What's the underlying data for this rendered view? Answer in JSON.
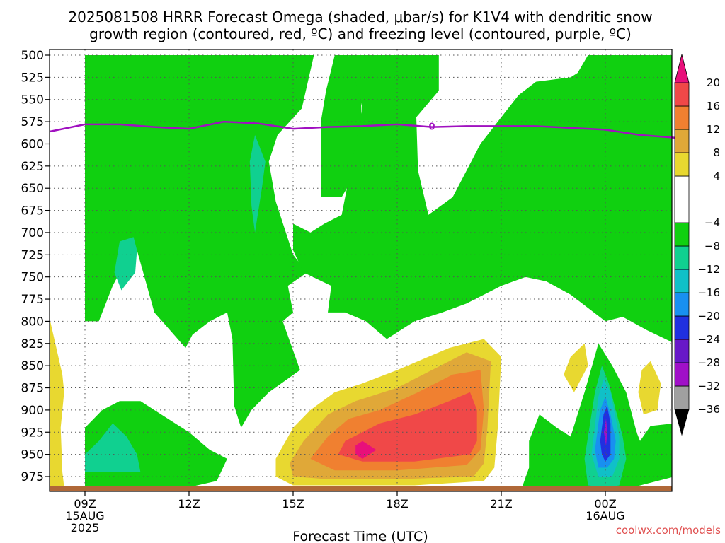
{
  "chart_data": {
    "type": "heatmap",
    "title_line1": "2025081508 HRRR Forecast Omega (shaded, μbar/s) for K1V4 with dendritic snow",
    "title_line2": "growth region (contoured, red, ºC) and freezing level (contoured, purple, ºC)",
    "xlabel": "Forecast Time (UTC)",
    "credit": "coolwx.com/models",
    "y_ticks": [
      "500",
      "525",
      "550",
      "575",
      "600",
      "625",
      "650",
      "675",
      "700",
      "725",
      "750",
      "775",
      "800",
      "825",
      "850",
      "875",
      "900",
      "925",
      "950",
      "975"
    ],
    "x_ticks": [
      {
        "h": 9,
        "lines": [
          "09Z",
          "15AUG",
          "2025"
        ]
      },
      {
        "h": 12,
        "lines": [
          "12Z"
        ]
      },
      {
        "h": 15,
        "lines": [
          "15Z"
        ]
      },
      {
        "h": 18,
        "lines": [
          "18Z"
        ]
      },
      {
        "h": 21,
        "lines": [
          "21Z"
        ]
      },
      {
        "h": 24,
        "lines": [
          "00Z",
          "16AUG"
        ]
      }
    ],
    "colorbar": {
      "levels": [
        -36,
        -32,
        -28,
        -24,
        -20,
        -16,
        -12,
        -8,
        -4,
        4,
        8,
        12,
        16,
        20
      ],
      "colors": {
        "lt_m36": "#000000",
        "m36_m32": "#a0a0a0",
        "m32_m28": "#a010c8",
        "m28_m24": "#6818c8",
        "m24_m20": "#2030e0",
        "m20_m16": "#1890f0",
        "m16_m12": "#10c0c8",
        "m12_m8": "#10d090",
        "m8_m4": "#10d010",
        "m4_4": "#ffffff",
        "p4_8": "#e8d830",
        "p8_12": "#e0a838",
        "p12_16": "#f08030",
        "p16_20": "#f04848",
        "gt_20": "#e8107a"
      }
    },
    "freezing_level_color": "#a010c0",
    "freezing_level_label": "0",
    "freezing_level": [
      {
        "h": 8.0,
        "p": 586
      },
      {
        "h": 9.0,
        "p": 578
      },
      {
        "h": 10.0,
        "p": 578
      },
      {
        "h": 11.0,
        "p": 581
      },
      {
        "h": 12.0,
        "p": 583
      },
      {
        "h": 13.0,
        "p": 575
      },
      {
        "h": 14.0,
        "p": 577
      },
      {
        "h": 15.0,
        "p": 583
      },
      {
        "h": 16.0,
        "p": 581
      },
      {
        "h": 17.0,
        "p": 580
      },
      {
        "h": 18.0,
        "p": 578
      },
      {
        "h": 19.0,
        "p": 581
      },
      {
        "h": 20.0,
        "p": 580
      },
      {
        "h": 21.0,
        "p": 580
      },
      {
        "h": 22.0,
        "p": 580
      },
      {
        "h": 23.0,
        "p": 582
      },
      {
        "h": 24.0,
        "p": 584
      },
      {
        "h": 25.0,
        "p": 590
      },
      {
        "h": 26.0,
        "p": 593
      }
    ],
    "surface_color": "#b06838",
    "regions": [
      {
        "color": "m8_m4",
        "pts": [
          [
            9,
            500
          ],
          [
            13.5,
            500
          ],
          [
            13.5,
            530
          ],
          [
            13.2,
            580
          ],
          [
            13.05,
            625
          ],
          [
            12.95,
            655
          ],
          [
            12.9,
            640
          ],
          [
            12.7,
            580
          ],
          [
            12.5,
            530
          ],
          [
            12.55,
            500
          ],
          [
            15.6,
            500
          ],
          [
            15.25,
            560
          ],
          [
            14.55,
            590
          ],
          [
            14.3,
            620
          ],
          [
            14.5,
            665
          ],
          [
            15,
            725
          ],
          [
            15.4,
            745
          ],
          [
            14.85,
            760
          ],
          [
            15,
            790
          ],
          [
            14.7,
            800
          ],
          [
            15.2,
            855
          ],
          [
            14.3,
            880
          ],
          [
            13.8,
            900
          ],
          [
            13.5,
            920
          ],
          [
            13.3,
            895
          ],
          [
            13.25,
            820
          ],
          [
            13.1,
            790
          ],
          [
            12.6,
            800
          ],
          [
            12.1,
            815
          ],
          [
            11.9,
            830
          ],
          [
            11,
            790
          ],
          [
            10.5,
            720
          ],
          [
            10.2,
            730
          ],
          [
            9.8,
            760
          ],
          [
            9.4,
            800
          ],
          [
            9,
            800
          ]
        ]
      },
      {
        "color": "m8_m4",
        "pts": [
          [
            16.2,
            500
          ],
          [
            16.6,
            500
          ],
          [
            16.95,
            540
          ],
          [
            17.0,
            600
          ],
          [
            16.7,
            640
          ],
          [
            16.4,
            660
          ],
          [
            15.8,
            660
          ],
          [
            15.8,
            575
          ],
          [
            15.95,
            540
          ]
        ]
      },
      {
        "color": "m8_m4",
        "pts": [
          [
            16.6,
            500
          ],
          [
            19.2,
            500
          ],
          [
            19.2,
            540
          ],
          [
            18.55,
            570
          ],
          [
            18.6,
            630
          ],
          [
            18.9,
            680
          ],
          [
            19.6,
            660
          ],
          [
            20.4,
            600
          ],
          [
            21.0,
            570
          ],
          [
            21.2,
            560
          ],
          [
            21.5,
            545
          ],
          [
            22,
            530
          ],
          [
            23,
            525
          ],
          [
            23.2,
            520
          ],
          [
            23.5,
            500
          ],
          [
            26,
            500
          ],
          [
            26,
            540
          ],
          [
            26,
            595
          ],
          [
            26,
            825
          ],
          [
            25.2,
            810
          ],
          [
            24.5,
            795
          ],
          [
            24,
            800
          ],
          [
            23,
            770
          ],
          [
            22.3,
            755
          ],
          [
            21.7,
            750
          ],
          [
            21,
            760
          ],
          [
            20.5,
            770
          ],
          [
            20,
            780
          ],
          [
            19.3,
            790
          ],
          [
            18.5,
            800
          ],
          [
            17.7,
            820
          ],
          [
            17.1,
            800
          ],
          [
            16.5,
            790
          ],
          [
            16.0,
            790
          ],
          [
            16.1,
            760
          ],
          [
            15.3,
            745
          ],
          [
            15.0,
            720
          ],
          [
            15.0,
            700
          ],
          [
            15.0,
            690
          ],
          [
            15.5,
            700
          ],
          [
            15.9,
            690
          ],
          [
            16.4,
            680
          ],
          [
            17,
            560
          ]
        ]
      },
      {
        "color": "m8_m4",
        "pts": [
          [
            9,
            920
          ],
          [
            9.5,
            900
          ],
          [
            10,
            890
          ],
          [
            10.6,
            890
          ],
          [
            11.2,
            905
          ],
          [
            12,
            925
          ],
          [
            12.6,
            945
          ],
          [
            13.1,
            955
          ],
          [
            12.8,
            980
          ],
          [
            12,
            987
          ],
          [
            9,
            987
          ]
        ]
      },
      {
        "color": "m8_m4",
        "pts": [
          [
            21.6,
            987
          ],
          [
            21.8,
            965
          ],
          [
            21.8,
            935
          ],
          [
            22.1,
            905
          ],
          [
            22.6,
            920
          ],
          [
            23.0,
            930
          ],
          [
            23.4,
            880
          ],
          [
            23.8,
            825
          ],
          [
            24.2,
            850
          ],
          [
            24.6,
            880
          ],
          [
            24.9,
            925
          ],
          [
            25,
            935
          ],
          [
            25.3,
            918
          ],
          [
            26,
            915
          ],
          [
            26,
            975
          ],
          [
            24.8,
            987
          ]
        ]
      },
      {
        "color": "m12_m8",
        "pts": [
          [
            13.9,
            590
          ],
          [
            14.2,
            620
          ],
          [
            14.1,
            650
          ],
          [
            13.9,
            700
          ],
          [
            13.8,
            670
          ],
          [
            13.75,
            620
          ]
        ]
      },
      {
        "color": "m12_m8",
        "pts": [
          [
            10.0,
            710
          ],
          [
            10.4,
            705
          ],
          [
            10.5,
            720
          ],
          [
            10.45,
            745
          ],
          [
            10.05,
            765
          ],
          [
            9.85,
            745
          ]
        ]
      },
      {
        "color": "m12_m8",
        "pts": [
          [
            9,
            950
          ],
          [
            9.4,
            935
          ],
          [
            9.8,
            915
          ],
          [
            10.2,
            930
          ],
          [
            10.5,
            950
          ],
          [
            10.6,
            970
          ],
          [
            9,
            970
          ]
        ]
      },
      {
        "color": "p4_8",
        "pts": [
          [
            8,
            800
          ],
          [
            8.35,
            860
          ],
          [
            8.4,
            880
          ],
          [
            8.3,
            920
          ],
          [
            8.35,
            970
          ],
          [
            8.4,
            987
          ],
          [
            8,
            987
          ]
        ]
      },
      {
        "color": "p4_8",
        "pts": [
          [
            14.5,
            955
          ],
          [
            15.0,
            920
          ],
          [
            15.5,
            900
          ],
          [
            16.2,
            880
          ],
          [
            17.0,
            870
          ],
          [
            18.0,
            855
          ],
          [
            19.5,
            830
          ],
          [
            20.5,
            820
          ],
          [
            21.0,
            840
          ],
          [
            20.9,
            920
          ],
          [
            20.8,
            965
          ],
          [
            20.5,
            980
          ],
          [
            18.5,
            985
          ],
          [
            16.5,
            985
          ],
          [
            15.0,
            985
          ],
          [
            14.5,
            975
          ]
        ]
      },
      {
        "color": "p4_8",
        "pts": [
          [
            23.0,
            840
          ],
          [
            23.4,
            825
          ],
          [
            23.5,
            850
          ],
          [
            23.1,
            880
          ],
          [
            22.8,
            860
          ]
        ]
      },
      {
        "color": "p4_8",
        "pts": [
          [
            25.3,
            845
          ],
          [
            25.6,
            870
          ],
          [
            25.5,
            900
          ],
          [
            25.1,
            905
          ],
          [
            24.95,
            880
          ],
          [
            25.05,
            855
          ]
        ]
      },
      {
        "color": "p8_12",
        "pts": [
          [
            14.9,
            960
          ],
          [
            15.3,
            935
          ],
          [
            16,
            905
          ],
          [
            16.8,
            890
          ],
          [
            18,
            875
          ],
          [
            19.0,
            855
          ],
          [
            20,
            835
          ],
          [
            20.7,
            845
          ],
          [
            20.6,
            920
          ],
          [
            20.5,
            960
          ],
          [
            20.2,
            975
          ],
          [
            18.0,
            978
          ],
          [
            16.0,
            978
          ],
          [
            15.0,
            975
          ]
        ]
      },
      {
        "color": "p12_16",
        "pts": [
          [
            15.5,
            955
          ],
          [
            16.0,
            930
          ],
          [
            16.6,
            910
          ],
          [
            17.5,
            900
          ],
          [
            18.6,
            880
          ],
          [
            19.6,
            860
          ],
          [
            20.4,
            855
          ],
          [
            20.5,
            900
          ],
          [
            20.4,
            945
          ],
          [
            20,
            962
          ],
          [
            18.0,
            968
          ],
          [
            16.2,
            968
          ]
        ]
      },
      {
        "color": "p16_20",
        "pts": [
          [
            16.3,
            950
          ],
          [
            16.5,
            935
          ],
          [
            17.5,
            915
          ],
          [
            18.5,
            905
          ],
          [
            19.5,
            890
          ],
          [
            20.1,
            880
          ],
          [
            20.3,
            900
          ],
          [
            20.3,
            935
          ],
          [
            20.1,
            950
          ],
          [
            18.5,
            958
          ],
          [
            17,
            958
          ]
        ]
      },
      {
        "color": "gt_20",
        "pts": [
          [
            16.8,
            940
          ],
          [
            17.0,
            935
          ],
          [
            17.4,
            945
          ],
          [
            17.0,
            955
          ],
          [
            16.8,
            950
          ]
        ]
      },
      {
        "color": "m12_m8",
        "pts": [
          [
            23.4,
            955
          ],
          [
            23.7,
            880
          ],
          [
            23.9,
            850
          ],
          [
            24.1,
            870
          ],
          [
            24.5,
            930
          ],
          [
            24.6,
            955
          ],
          [
            24.4,
            985
          ],
          [
            24,
            987
          ],
          [
            23.5,
            985
          ]
        ]
      },
      {
        "color": "m16_m12",
        "pts": [
          [
            23.6,
            950
          ],
          [
            23.8,
            885
          ],
          [
            23.95,
            865
          ],
          [
            24.15,
            880
          ],
          [
            24.4,
            930
          ],
          [
            24.4,
            955
          ],
          [
            24.2,
            975
          ],
          [
            23.8,
            975
          ]
        ]
      },
      {
        "color": "m20_m16",
        "pts": [
          [
            23.7,
            945
          ],
          [
            23.85,
            900
          ],
          [
            24.0,
            885
          ],
          [
            24.15,
            905
          ],
          [
            24.3,
            935
          ],
          [
            24.25,
            955
          ],
          [
            24.05,
            965
          ],
          [
            23.8,
            965
          ]
        ]
      },
      {
        "color": "m24_m20",
        "pts": [
          [
            23.85,
            935
          ],
          [
            23.95,
            905
          ],
          [
            24.05,
            895
          ],
          [
            24.15,
            915
          ],
          [
            24.15,
            950
          ],
          [
            24.0,
            958
          ],
          [
            23.9,
            950
          ]
        ]
      },
      {
        "color": "m32_m28",
        "pts": [
          [
            23.96,
            925
          ],
          [
            24.02,
            910
          ],
          [
            24.06,
            925
          ],
          [
            24.02,
            940
          ]
        ]
      }
    ]
  }
}
